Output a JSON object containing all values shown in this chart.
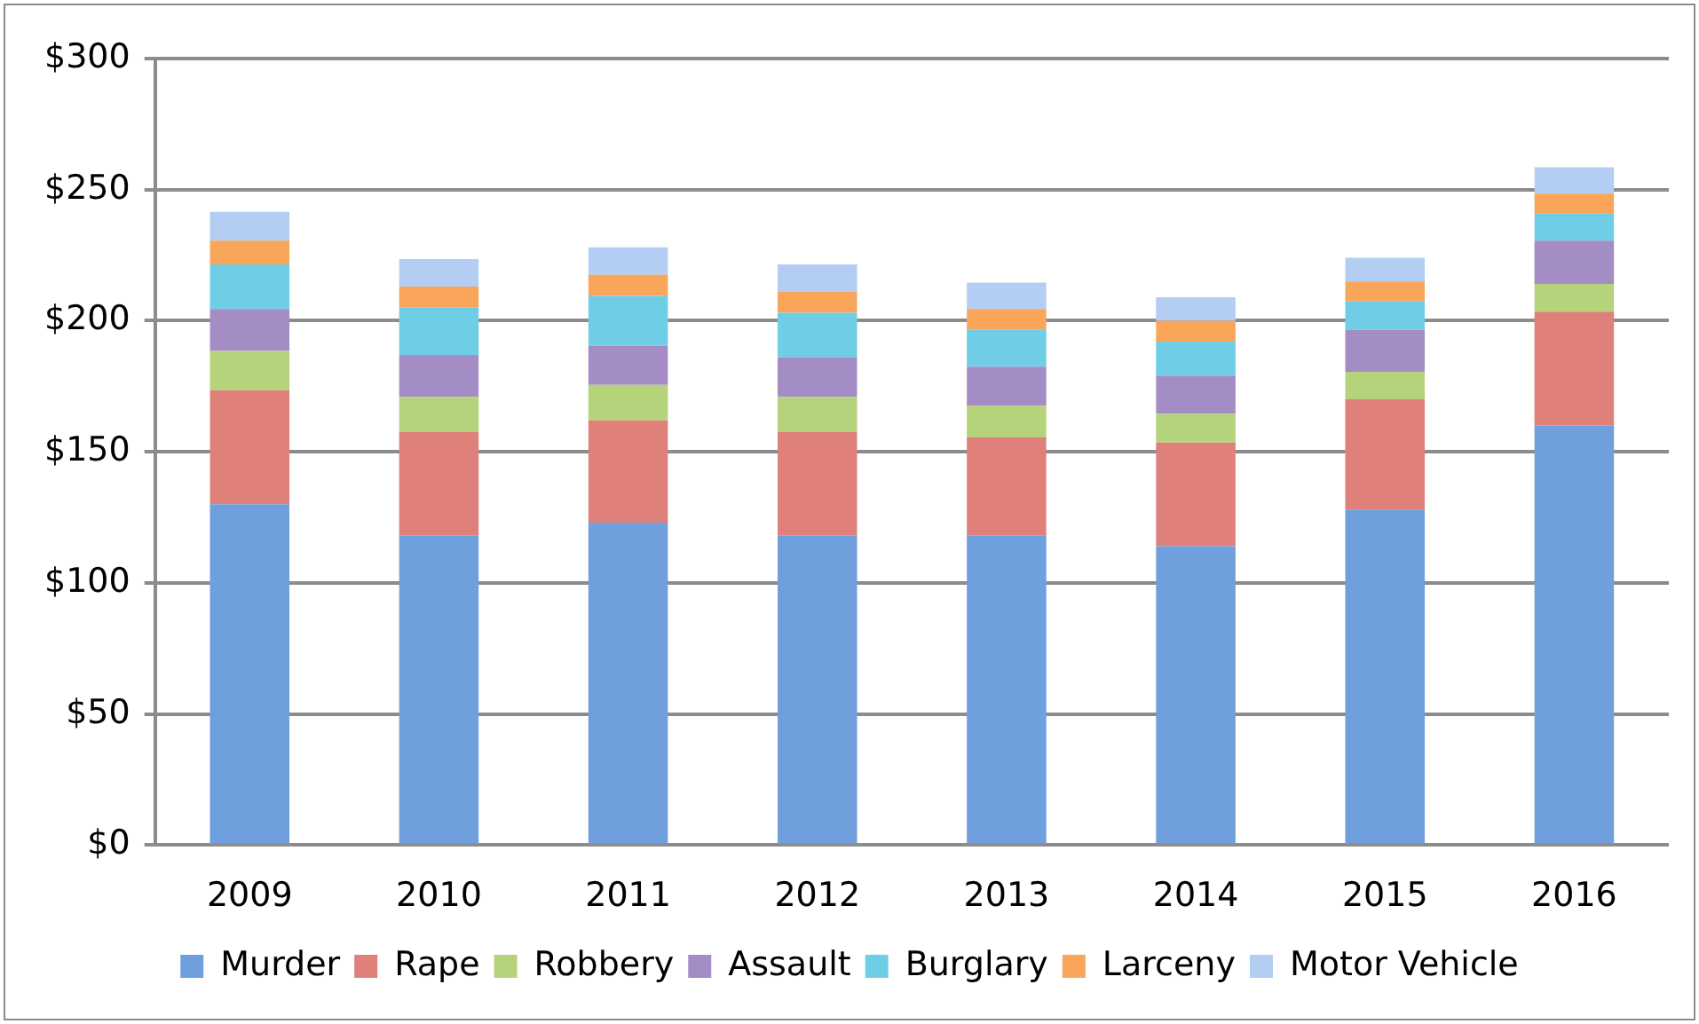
{
  "chart_data": {
    "type": "bar",
    "stacked": true,
    "categories": [
      "2009",
      "2010",
      "2011",
      "2012",
      "2013",
      "2014",
      "2015",
      "2016"
    ],
    "series": [
      {
        "name": "Murder",
        "color": "#6f9fdc",
        "values": [
          130,
          118,
          123,
          118,
          118,
          114,
          128,
          160
        ]
      },
      {
        "name": "Rape",
        "color": "#e0807a",
        "values": [
          43.5,
          39.5,
          39,
          39.5,
          37.5,
          39.5,
          42,
          43.5
        ]
      },
      {
        "name": "Robbery",
        "color": "#b5d37a",
        "values": [
          15,
          13.5,
          13.5,
          13.5,
          12,
          11,
          10.5,
          10.5
        ]
      },
      {
        "name": "Assault",
        "color": "#a48cc4",
        "values": [
          16,
          16,
          15,
          15,
          15,
          14.5,
          16,
          16.5
        ]
      },
      {
        "name": "Burglary",
        "color": "#6fcde6",
        "values": [
          17,
          18,
          19,
          17,
          14,
          13,
          11,
          10.5
        ]
      },
      {
        "name": "Larceny",
        "color": "#f9a55a",
        "values": [
          9,
          8,
          8,
          8,
          8,
          8,
          7.5,
          7.5
        ]
      },
      {
        "name": "Motor Vehicle",
        "color": "#b3cdf3",
        "values": [
          11,
          10.5,
          10.5,
          10.5,
          10,
          9,
          9,
          10
        ]
      }
    ],
    "ylim": [
      0,
      300
    ],
    "yticks": [
      {
        "value": 0,
        "label": "$0"
      },
      {
        "value": 50,
        "label": "$50"
      },
      {
        "value": 100,
        "label": "$100"
      },
      {
        "value": 150,
        "label": "$150"
      },
      {
        "value": 200,
        "label": "$200"
      },
      {
        "value": 250,
        "label": "$250"
      },
      {
        "value": 300,
        "label": "$300"
      }
    ],
    "grid": "y",
    "legend": "bottom"
  }
}
